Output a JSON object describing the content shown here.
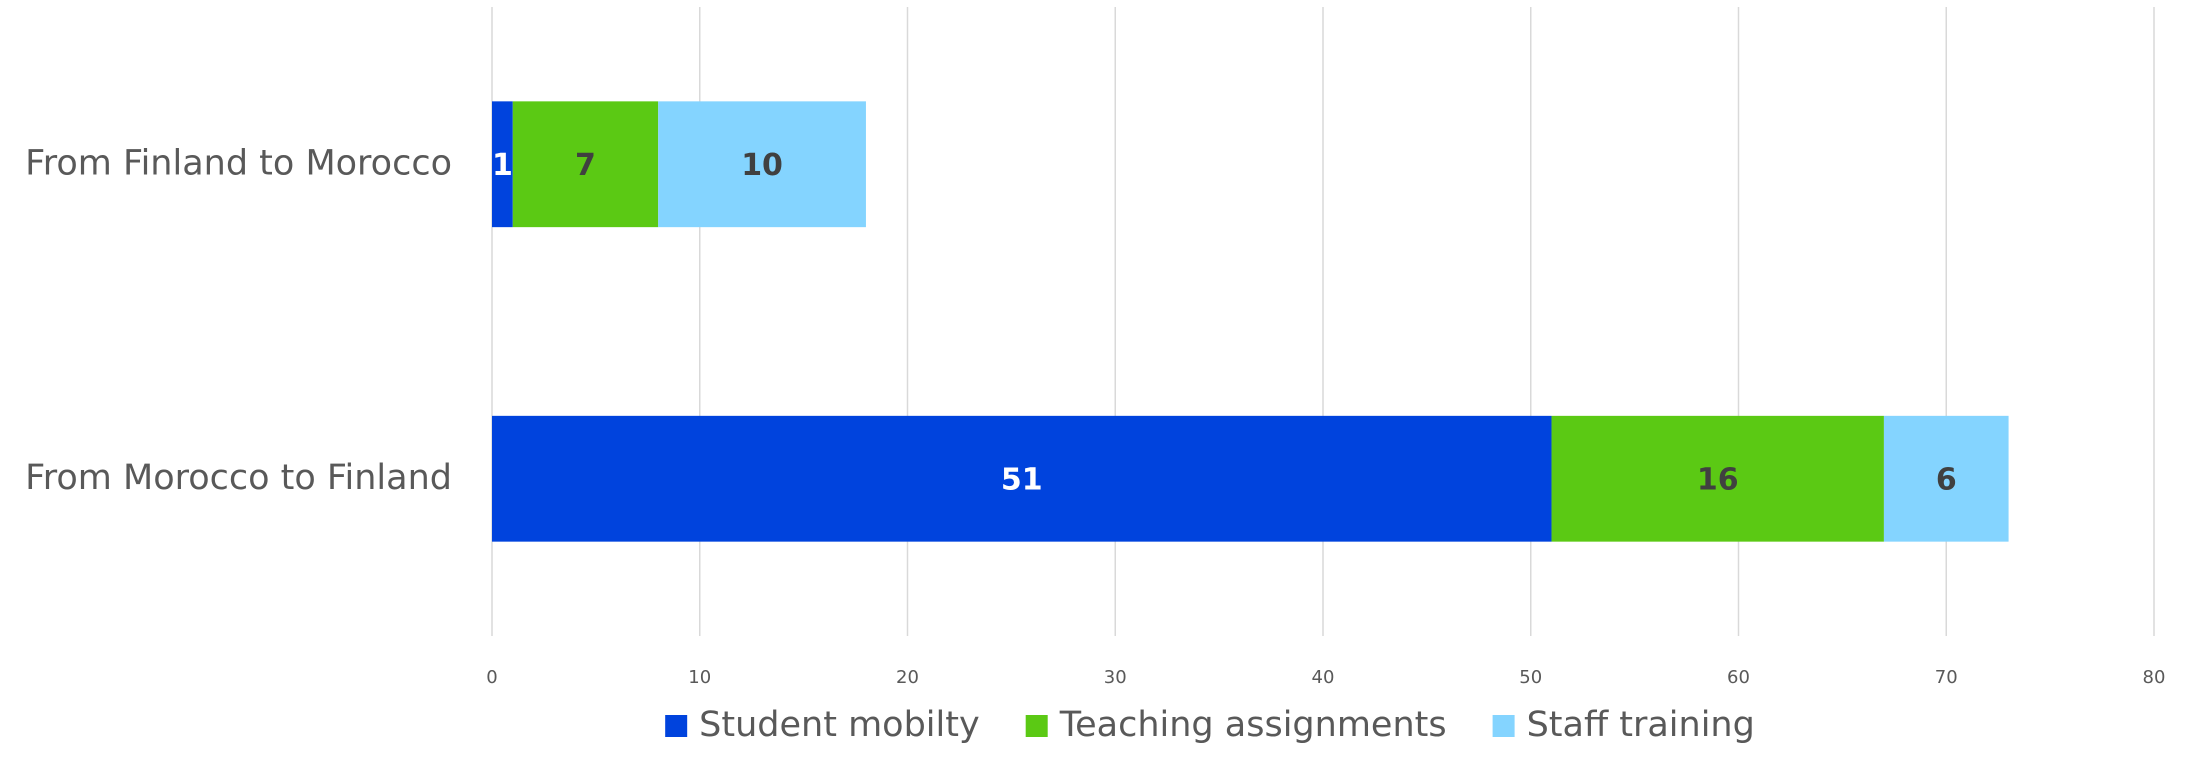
{
  "chart_data": {
    "type": "stacked_barh",
    "categories": [
      "From Finland to Morocco",
      "From Morocco to Finland"
    ],
    "series": [
      {
        "name": "Student mobilty",
        "color": "#0043dd",
        "label_color": "#ffffff",
        "values": [
          1,
          51
        ]
      },
      {
        "name": "Teaching assignments",
        "color": "#5bc914",
        "label_color": "#404040",
        "values": [
          7,
          16
        ]
      },
      {
        "name": "Staff training",
        "color": "#84d4ff",
        "label_color": "#404040",
        "values": [
          10,
          6
        ]
      }
    ],
    "xlim": [
      0,
      80
    ],
    "xticks": [
      0,
      10,
      20,
      30,
      40,
      50,
      60,
      70,
      80
    ],
    "grid": true,
    "legend": "bottom"
  }
}
